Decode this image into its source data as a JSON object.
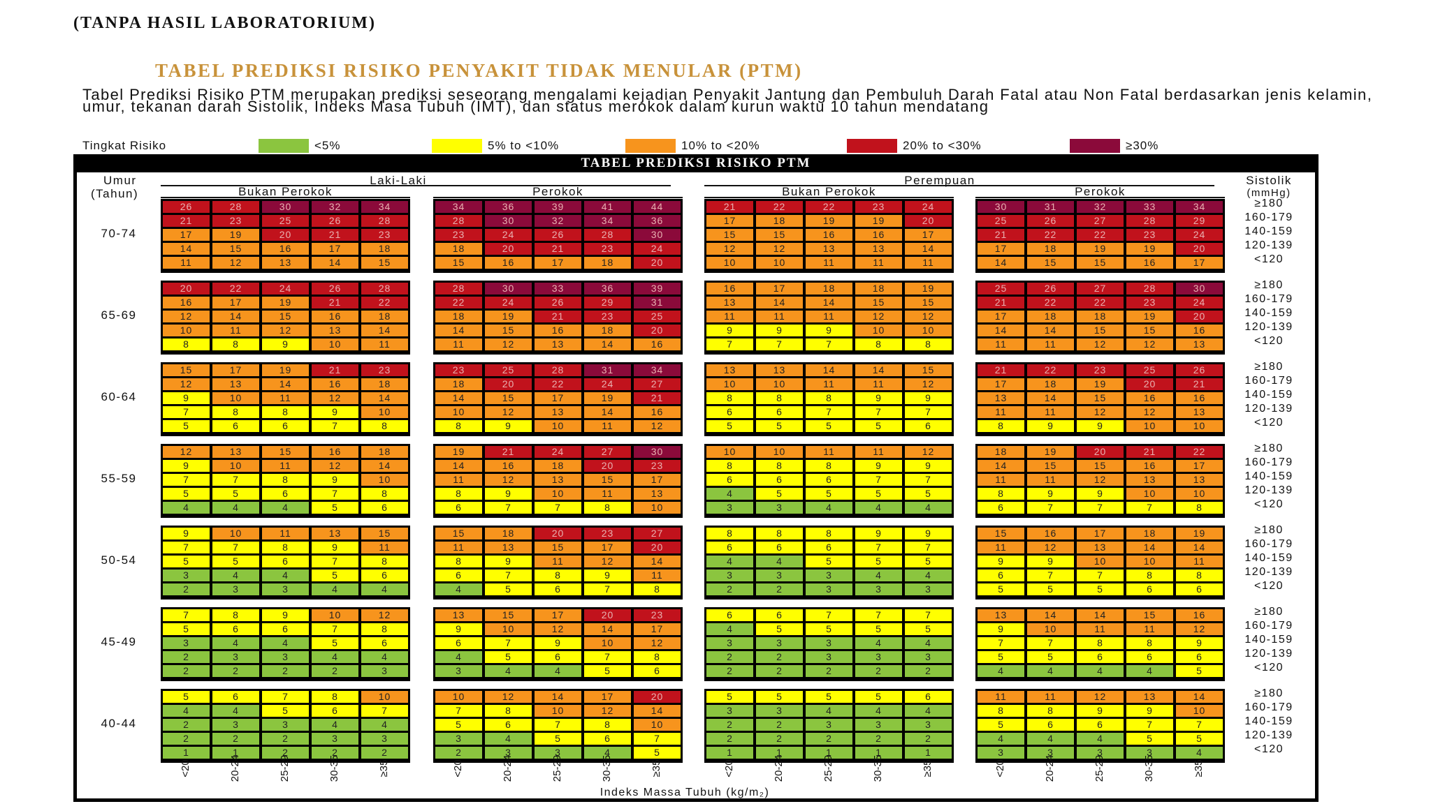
{
  "header": {
    "title": "(TANPA HASIL LABORATORIUM)",
    "heading": "TABEL PREDIKSI RISIKO PENYAKIT TIDAK MENULAR (PTM)",
    "description": "Tabel Prediksi Risiko PTM merupakan prediksi seseorang mengalami kejadian Penyakit Jantung dan Pembuluh Darah Fatal atau Non Fatal berdasarkan jenis kelamin, umur, tekanan darah Sistolik, Indeks Masa Tubuh (IMT), dan status merokok  dalam kurun waktu 10 tahun mendatang"
  },
  "legend": {
    "title": "Tingkat Risiko",
    "items": [
      {
        "label": "<5%",
        "color": "#8bc53f"
      },
      {
        "label": "5% to <10%",
        "color": "#ffff00"
      },
      {
        "label": "10% to <20%",
        "color": "#f7941d"
      },
      {
        "label": "20% to <30%",
        "color": "#c1121c"
      },
      {
        "label": "≥30%",
        "color": "#8b0a3a"
      }
    ]
  },
  "table": {
    "title": "TABEL PREDIKSI RISIKO PTM",
    "age_header": "Umur",
    "age_header_unit": "(Tahun)",
    "male": "Laki-Laki",
    "female": "Perempuan",
    "non_smoker": "Bukan Perokok",
    "smoker": "Perokok",
    "sys_header": "Sistolik",
    "sys_unit": "(mmHg)",
    "sys_levels": [
      "≥180",
      "160-179",
      "140-159",
      "120-139",
      "<120"
    ],
    "bmi_levels": [
      "<20",
      "20-24",
      "25-29",
      "30-35",
      "≥35"
    ],
    "bmi_axis_label": "Indeks Massa Tubuh (kg/m₂)",
    "age_groups": [
      {
        "age": "70-74",
        "panels": [
          [
            [
              26,
              28,
              30,
              32,
              34
            ],
            [
              21,
              23,
              25,
              26,
              28
            ],
            [
              17,
              19,
              20,
              21,
              23
            ],
            [
              14,
              15,
              16,
              17,
              18
            ],
            [
              11,
              12,
              13,
              14,
              15
            ]
          ],
          [
            [
              34,
              36,
              39,
              41,
              44
            ],
            [
              28,
              30,
              32,
              34,
              36
            ],
            [
              23,
              24,
              26,
              28,
              30
            ],
            [
              18,
              20,
              21,
              23,
              24
            ],
            [
              15,
              16,
              17,
              18,
              20
            ]
          ],
          [
            [
              21,
              22,
              22,
              23,
              24
            ],
            [
              17,
              18,
              19,
              19,
              20
            ],
            [
              15,
              15,
              16,
              16,
              17
            ],
            [
              12,
              12,
              13,
              13,
              14
            ],
            [
              10,
              10,
              11,
              11,
              11
            ]
          ],
          [
            [
              30,
              31,
              32,
              33,
              34
            ],
            [
              25,
              26,
              27,
              28,
              29
            ],
            [
              21,
              22,
              22,
              23,
              24
            ],
            [
              17,
              18,
              19,
              19,
              20
            ],
            [
              14,
              15,
              15,
              16,
              17
            ]
          ]
        ]
      },
      {
        "age": "65-69",
        "panels": [
          [
            [
              20,
              22,
              24,
              26,
              28
            ],
            [
              16,
              17,
              19,
              21,
              22
            ],
            [
              12,
              14,
              15,
              16,
              18
            ],
            [
              10,
              11,
              12,
              13,
              14
            ],
            [
              8,
              8,
              9,
              10,
              11
            ]
          ],
          [
            [
              28,
              30,
              33,
              36,
              39
            ],
            [
              22,
              24,
              26,
              29,
              31
            ],
            [
              18,
              19,
              21,
              23,
              25
            ],
            [
              14,
              15,
              16,
              18,
              20
            ],
            [
              11,
              12,
              13,
              14,
              16
            ]
          ],
          [
            [
              16,
              17,
              18,
              18,
              19
            ],
            [
              13,
              14,
              14,
              15,
              15
            ],
            [
              11,
              11,
              11,
              12,
              12
            ],
            [
              9,
              9,
              9,
              10,
              10
            ],
            [
              7,
              7,
              7,
              8,
              8
            ]
          ],
          [
            [
              25,
              26,
              27,
              28,
              30
            ],
            [
              21,
              22,
              22,
              23,
              24
            ],
            [
              17,
              18,
              18,
              19,
              20
            ],
            [
              14,
              14,
              15,
              15,
              16
            ],
            [
              11,
              11,
              12,
              12,
              13
            ]
          ]
        ]
      },
      {
        "age": "60-64",
        "panels": [
          [
            [
              15,
              17,
              19,
              21,
              23
            ],
            [
              12,
              13,
              14,
              16,
              18
            ],
            [
              9,
              10,
              11,
              12,
              14
            ],
            [
              7,
              8,
              8,
              9,
              10
            ],
            [
              5,
              6,
              6,
              7,
              8
            ]
          ],
          [
            [
              23,
              25,
              28,
              31,
              34
            ],
            [
              18,
              20,
              22,
              24,
              27
            ],
            [
              14,
              15,
              17,
              19,
              21
            ],
            [
              10,
              12,
              13,
              14,
              16
            ],
            [
              8,
              9,
              10,
              11,
              12
            ]
          ],
          [
            [
              13,
              13,
              14,
              14,
              15
            ],
            [
              10,
              10,
              11,
              11,
              12
            ],
            [
              8,
              8,
              8,
              9,
              9
            ],
            [
              6,
              6,
              7,
              7,
              7
            ],
            [
              5,
              5,
              5,
              5,
              6
            ]
          ],
          [
            [
              21,
              22,
              23,
              25,
              26
            ],
            [
              17,
              18,
              19,
              20,
              21
            ],
            [
              13,
              14,
              15,
              16,
              16
            ],
            [
              11,
              11,
              12,
              12,
              13
            ],
            [
              8,
              9,
              9,
              10,
              10
            ]
          ]
        ]
      },
      {
        "age": "55-59",
        "panels": [
          [
            [
              12,
              13,
              15,
              16,
              18
            ],
            [
              9,
              10,
              11,
              12,
              14
            ],
            [
              7,
              7,
              8,
              9,
              10
            ],
            [
              5,
              5,
              6,
              7,
              8
            ],
            [
              4,
              4,
              4,
              5,
              6
            ]
          ],
          [
            [
              19,
              21,
              24,
              27,
              30
            ],
            [
              14,
              16,
              18,
              20,
              23
            ],
            [
              11,
              12,
              13,
              15,
              17
            ],
            [
              8,
              9,
              10,
              11,
              13
            ],
            [
              6,
              7,
              7,
              8,
              10
            ]
          ],
          [
            [
              10,
              10,
              11,
              11,
              12
            ],
            [
              8,
              8,
              8,
              9,
              9
            ],
            [
              6,
              6,
              6,
              7,
              7
            ],
            [
              4,
              5,
              5,
              5,
              5
            ],
            [
              3,
              3,
              4,
              4,
              4
            ]
          ],
          [
            [
              18,
              19,
              20,
              21,
              22
            ],
            [
              14,
              15,
              15,
              16,
              17
            ],
            [
              11,
              11,
              12,
              13,
              13
            ],
            [
              8,
              9,
              9,
              10,
              10
            ],
            [
              6,
              7,
              7,
              7,
              8
            ]
          ]
        ]
      },
      {
        "age": "50-54",
        "panels": [
          [
            [
              9,
              10,
              11,
              13,
              15
            ],
            [
              7,
              7,
              8,
              9,
              11
            ],
            [
              5,
              5,
              6,
              7,
              8
            ],
            [
              3,
              4,
              4,
              5,
              6
            ],
            [
              2,
              3,
              3,
              4,
              4
            ]
          ],
          [
            [
              15,
              18,
              20,
              23,
              27
            ],
            [
              11,
              13,
              15,
              17,
              20
            ],
            [
              8,
              9,
              11,
              12,
              14
            ],
            [
              6,
              7,
              8,
              9,
              11
            ],
            [
              4,
              5,
              6,
              7,
              8
            ]
          ],
          [
            [
              8,
              8,
              8,
              9,
              9
            ],
            [
              6,
              6,
              6,
              7,
              7
            ],
            [
              4,
              4,
              5,
              5,
              5
            ],
            [
              3,
              3,
              3,
              4,
              4
            ],
            [
              2,
              2,
              3,
              3,
              3
            ]
          ],
          [
            [
              15,
              16,
              17,
              18,
              19
            ],
            [
              11,
              12,
              13,
              14,
              14
            ],
            [
              9,
              9,
              10,
              10,
              11
            ],
            [
              6,
              7,
              7,
              8,
              8
            ],
            [
              5,
              5,
              5,
              6,
              6
            ]
          ]
        ]
      },
      {
        "age": "45-49",
        "panels": [
          [
            [
              7,
              8,
              9,
              10,
              12
            ],
            [
              5,
              6,
              6,
              7,
              8
            ],
            [
              3,
              4,
              4,
              5,
              6
            ],
            [
              2,
              3,
              3,
              4,
              4
            ],
            [
              2,
              2,
              2,
              2,
              3
            ]
          ],
          [
            [
              13,
              15,
              17,
              20,
              23
            ],
            [
              9,
              10,
              12,
              14,
              17
            ],
            [
              6,
              7,
              9,
              10,
              12
            ],
            [
              4,
              5,
              6,
              7,
              8
            ],
            [
              3,
              4,
              4,
              5,
              6
            ]
          ],
          [
            [
              6,
              6,
              7,
              7,
              7
            ],
            [
              4,
              5,
              5,
              5,
              5
            ],
            [
              3,
              3,
              3,
              4,
              4
            ],
            [
              2,
              2,
              3,
              3,
              3
            ],
            [
              2,
              2,
              2,
              2,
              2
            ]
          ],
          [
            [
              13,
              14,
              14,
              15,
              16
            ],
            [
              9,
              10,
              11,
              11,
              12
            ],
            [
              7,
              7,
              8,
              8,
              9
            ],
            [
              5,
              5,
              6,
              6,
              6
            ],
            [
              4,
              4,
              4,
              4,
              5
            ]
          ]
        ]
      },
      {
        "age": "40-44",
        "panels": [
          [
            [
              5,
              6,
              7,
              8,
              10
            ],
            [
              4,
              4,
              5,
              6,
              7
            ],
            [
              2,
              3,
              3,
              4,
              4
            ],
            [
              2,
              2,
              2,
              3,
              3
            ],
            [
              1,
              1,
              2,
              2,
              2
            ]
          ],
          [
            [
              10,
              12,
              14,
              17,
              20
            ],
            [
              7,
              8,
              10,
              12,
              14
            ],
            [
              5,
              6,
              7,
              8,
              10
            ],
            [
              3,
              4,
              5,
              6,
              7
            ],
            [
              2,
              3,
              3,
              4,
              5
            ]
          ],
          [
            [
              5,
              5,
              5,
              5,
              6
            ],
            [
              3,
              3,
              4,
              4,
              4
            ],
            [
              2,
              2,
              3,
              3,
              3
            ],
            [
              2,
              2,
              2,
              2,
              2
            ],
            [
              1,
              1,
              1,
              1,
              1
            ]
          ],
          [
            [
              11,
              11,
              12,
              13,
              14
            ],
            [
              8,
              8,
              9,
              9,
              10
            ],
            [
              5,
              6,
              6,
              7,
              7
            ],
            [
              4,
              4,
              4,
              5,
              5
            ],
            [
              3,
              3,
              3,
              3,
              4
            ]
          ]
        ]
      }
    ]
  }
}
